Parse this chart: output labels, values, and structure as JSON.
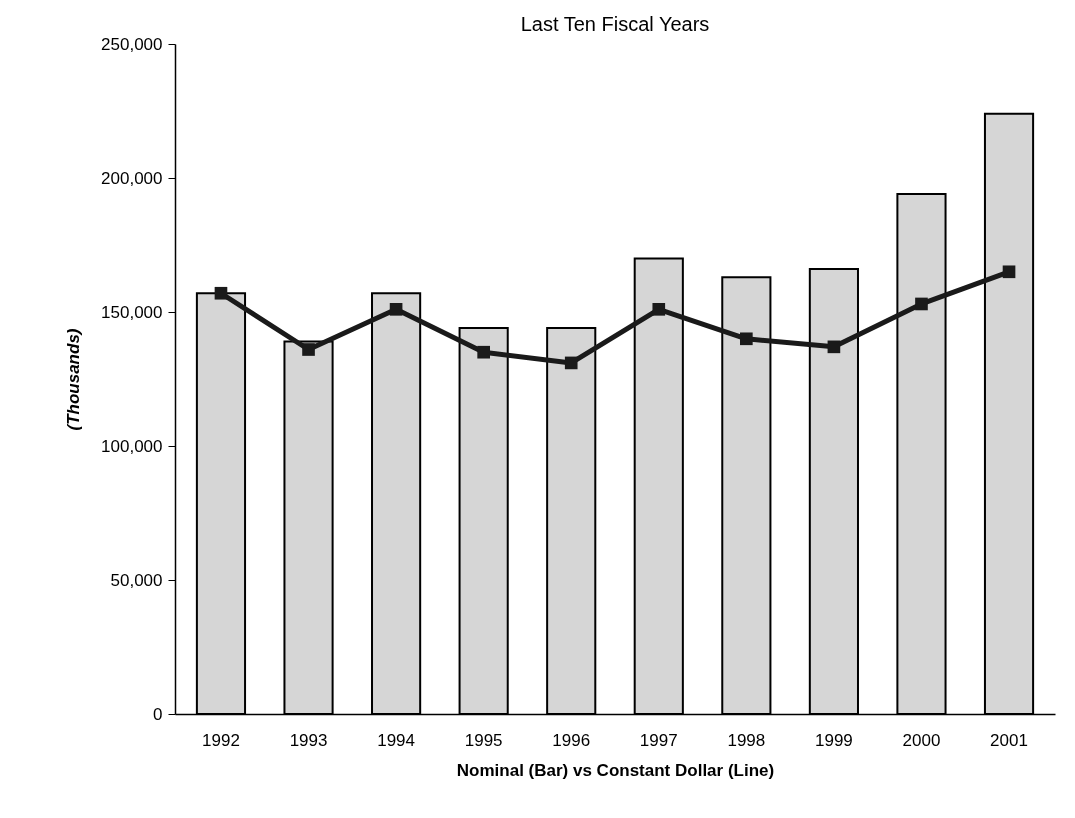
{
  "chart_data": {
    "type": "bar",
    "title": "Last Ten Fiscal Years",
    "xlabel": "Nominal (Bar) vs Constant Dollar (Line)",
    "ylabel": "(Thousands)",
    "categories": [
      "1992",
      "1993",
      "1994",
      "1995",
      "1996",
      "1997",
      "1998",
      "1999",
      "2000",
      "2001"
    ],
    "series": [
      {
        "color": "#d6d6d6",
        "values": [
          157000,
          139000,
          157000,
          144000,
          144000,
          170000,
          163000,
          166000,
          194000,
          224000
        ]
      },
      {
        "type": "line",
        "color": "#1a1a1a",
        "marker": "square",
        "values": [
          157000,
          136000,
          151000,
          135000,
          131000,
          151000,
          140000,
          137000,
          153000,
          165000
        ]
      }
    ],
    "ylim": [
      0,
      250000
    ],
    "yticks": [
      0,
      {
        "value": 50000,
        "label": "50,000"
      },
      {
        "value": 100000,
        "label": "100,000"
      },
      {
        "value": 150000,
        "label": "150,000"
      },
      {
        "value": 200000,
        "label": "200,000"
      },
      {
        "value": 250000,
        "label": "250,000"
      }
    ],
    "grid": false
  }
}
